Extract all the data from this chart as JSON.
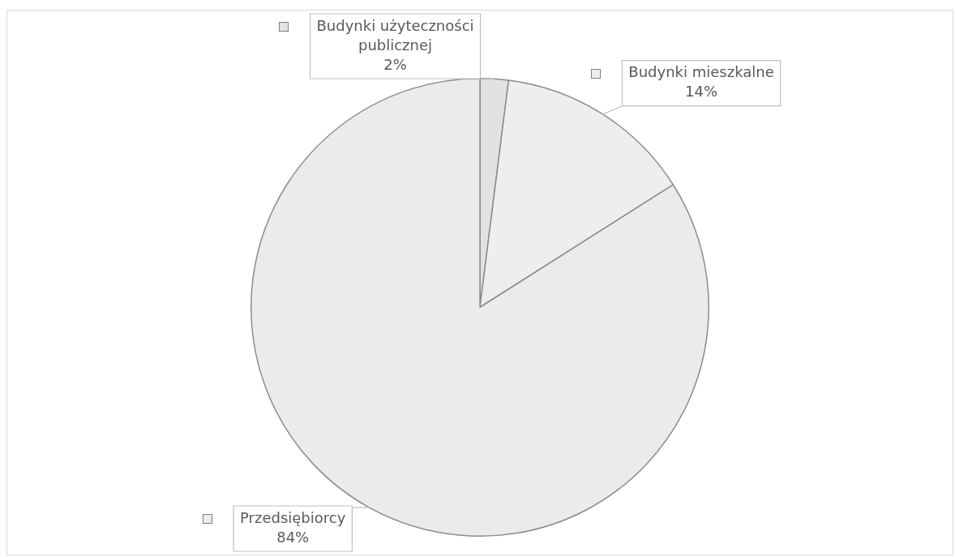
{
  "chart_data": {
    "type": "pie",
    "categories": [
      "Budynki użyteczności publicznej",
      "Budynki mieszkalne",
      "Przedsiębiorcy"
    ],
    "values": [
      2,
      14,
      84
    ],
    "colors": [
      "#e2e2e2",
      "#eeeeee",
      "#ebebeb"
    ],
    "value_labels": [
      "2%",
      "14%",
      "84%"
    ],
    "legend": "left"
  }
}
